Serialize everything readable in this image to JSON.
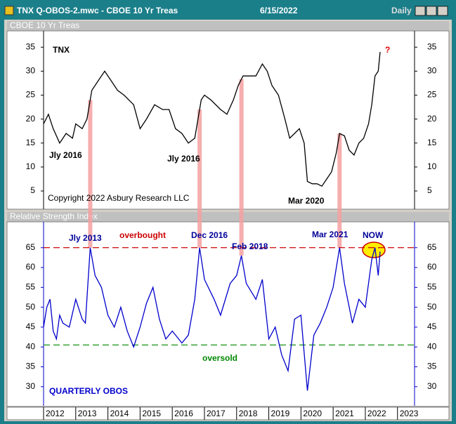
{
  "window": {
    "title": "TNX Q-OBOS-2.mwc - CBOE 10 Yr Treas",
    "date": "6/15/2022",
    "period": "Daily"
  },
  "chart_data": [
    {
      "type": "line",
      "panel_title": "CBOE 10 Yr Treas",
      "color": "#000000",
      "x": [
        2012.0,
        2012.15,
        2012.3,
        2012.5,
        2012.7,
        2012.9,
        2013.0,
        2013.2,
        2013.35,
        2013.5,
        2013.7,
        2013.9,
        2014.1,
        2014.3,
        2014.5,
        2014.8,
        2015.0,
        2015.2,
        2015.45,
        2015.7,
        2015.9,
        2016.1,
        2016.3,
        2016.5,
        2016.7,
        2016.9,
        2017.0,
        2017.2,
        2017.5,
        2017.7,
        2017.9,
        2018.05,
        2018.2,
        2018.4,
        2018.6,
        2018.8,
        2018.95,
        2019.1,
        2019.3,
        2019.5,
        2019.65,
        2019.8,
        2019.95,
        2020.1,
        2020.2,
        2020.35,
        2020.5,
        2020.65,
        2020.8,
        2020.95,
        2021.1,
        2021.2,
        2021.35,
        2021.5,
        2021.65,
        2021.8,
        2021.95,
        2022.1,
        2022.2,
        2022.3,
        2022.4,
        2022.46
      ],
      "values": [
        19,
        21,
        18,
        15,
        17,
        16,
        19,
        18,
        20,
        26,
        28,
        30,
        28,
        26,
        25,
        23,
        18,
        20,
        23,
        22,
        22,
        18,
        17,
        15,
        16,
        24,
        25,
        24,
        22,
        21,
        24,
        27,
        29,
        29,
        29,
        31.5,
        30,
        27,
        25,
        20,
        16,
        17,
        18,
        15,
        7,
        6.5,
        6.5,
        6,
        7.5,
        9,
        13,
        17,
        16.5,
        13.5,
        12.5,
        15,
        16,
        19,
        23,
        29,
        30,
        34
      ],
      "xlim": [
        2012.0,
        2023.53
      ],
      "ylim": [
        1.2,
        38.4
      ],
      "yticks": [
        5,
        10,
        15,
        20,
        25,
        30,
        35
      ],
      "highlight_x": [
        2013.45,
        2016.85,
        2018.15,
        2021.2
      ],
      "annotations": [
        "TNX",
        "?",
        "Jly 2016",
        "Jly 2016",
        "Mar 2020",
        "Copyright 2022 Asbury Research LLC"
      ]
    },
    {
      "type": "line",
      "panel_title": "Relative Strength Index",
      "color": "#0000cc",
      "x": [
        2012.0,
        2012.1,
        2012.2,
        2012.3,
        2012.4,
        2012.5,
        2012.6,
        2012.8,
        2013.0,
        2013.2,
        2013.3,
        2013.45,
        2013.6,
        2013.8,
        2014.0,
        2014.2,
        2014.4,
        2014.6,
        2014.8,
        2015.0,
        2015.2,
        2015.4,
        2015.6,
        2015.8,
        2016.0,
        2016.3,
        2016.5,
        2016.7,
        2016.85,
        2017.0,
        2017.3,
        2017.5,
        2017.8,
        2018.0,
        2018.15,
        2018.3,
        2018.6,
        2018.8,
        2019.0,
        2019.2,
        2019.4,
        2019.6,
        2019.8,
        2020.0,
        2020.2,
        2020.4,
        2020.6,
        2020.8,
        2021.0,
        2021.2,
        2021.35,
        2021.6,
        2021.8,
        2022.0,
        2022.2,
        2022.3,
        2022.4,
        2022.46
      ],
      "values": [
        45,
        50,
        52,
        44,
        42,
        48,
        46,
        45,
        52,
        47,
        46,
        65,
        58,
        55,
        48,
        45,
        50,
        44,
        40,
        45,
        51,
        55,
        47,
        42,
        44,
        41,
        43,
        52,
        65,
        57,
        52,
        48,
        56,
        58,
        63,
        56,
        52,
        57,
        42,
        45,
        38,
        34,
        47,
        48,
        29,
        43,
        46,
        50,
        55,
        65,
        56,
        46,
        52,
        50,
        62,
        65,
        58,
        64
      ],
      "xlim": [
        2012.0,
        2023.53
      ],
      "ylim": [
        25.2,
        71.5
      ],
      "yticks": [
        30,
        35,
        40,
        45,
        50,
        55,
        60,
        65
      ],
      "xticks": [
        2012,
        2013,
        2014,
        2015,
        2016,
        2017,
        2018,
        2019,
        2020,
        2021,
        2022,
        2023
      ],
      "reference_lines": [
        {
          "value": 65,
          "label": "overbought",
          "color": "#cc0000"
        },
        {
          "value": 40.5,
          "label": "oversold",
          "color": "#008800"
        }
      ],
      "annotations": [
        "Jly 2013",
        "Dec 2016",
        "Feb 2018",
        "Mar 2021",
        "NOW",
        "QUARTERLY OBOS"
      ]
    }
  ]
}
